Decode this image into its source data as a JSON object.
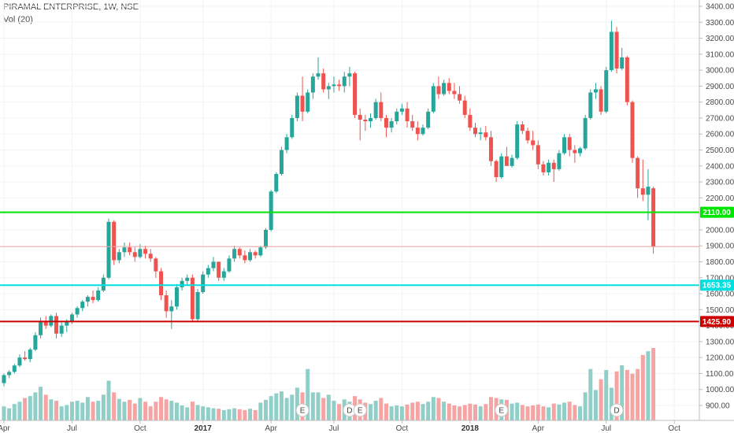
{
  "header": {
    "title": "PIRAMAL ENTERPRISE, 1W, NSE",
    "volume_label": "Vol (20)"
  },
  "chart_data": {
    "type": "candlestick",
    "title": "PIRAMAL ENTERPRISE, 1W, NSE",
    "y_axis": {
      "range": [
        850,
        3450
      ],
      "ticks": [
        900,
        1000,
        1100,
        1200,
        1300,
        1400,
        1500,
        1600,
        1700,
        1800,
        1900,
        2000,
        2100,
        2200,
        2300,
        2400,
        2500,
        2600,
        2700,
        2800,
        2900,
        3000,
        3100,
        3200,
        3300,
        3400
      ],
      "tick_labels": [
        "900.00",
        "1000.00",
        "1100.00",
        "1200.00",
        "1300.00",
        "1400.00",
        "1500.00",
        "1600.00",
        "1700.00",
        "1800.00",
        "1900.00",
        "2000.00",
        "2100.00",
        "2200.00",
        "2300.00",
        "2400.00",
        "2500.00",
        "2600.00",
        "2700.00",
        "2800.00",
        "2900.00",
        "3000.00",
        "3100.00",
        "3200.00",
        "3300.00",
        "3400.00"
      ]
    },
    "x_axis": {
      "labels": [
        {
          "text": "Apr",
          "index": 0,
          "year": false
        },
        {
          "text": "Jul",
          "index": 13,
          "year": false
        },
        {
          "text": "Oct",
          "index": 26,
          "year": false
        },
        {
          "text": "2017",
          "index": 38,
          "year": true
        },
        {
          "text": "Apr",
          "index": 51,
          "year": false
        },
        {
          "text": "Jul",
          "index": 63,
          "year": false
        },
        {
          "text": "Oct",
          "index": 76,
          "year": false
        },
        {
          "text": "2018",
          "index": 89,
          "year": true
        },
        {
          "text": "Apr",
          "index": 102,
          "year": false
        },
        {
          "text": "Jul",
          "index": 115,
          "year": false
        },
        {
          "text": "Oct",
          "index": 128,
          "year": false
        }
      ]
    },
    "horizontal_lines": [
      {
        "name": "green-level",
        "value": 2110,
        "color": "#00e600",
        "label": "2110.00"
      },
      {
        "name": "cyan-level",
        "value": 1653.35,
        "color": "#00e0e0",
        "label": "1653.35"
      },
      {
        "name": "red-level",
        "value": 1425.9,
        "color": "#cc0000",
        "label": "1425.90"
      },
      {
        "name": "current-price",
        "value": 1895,
        "color": "#f4a6a6",
        "label": ""
      }
    ],
    "events": [
      {
        "letter": "E",
        "index": 57
      },
      {
        "letter": "D",
        "index": 66
      },
      {
        "letter": "E",
        "index": 68
      },
      {
        "letter": "E",
        "index": 95
      },
      {
        "letter": "D",
        "index": 117
      }
    ],
    "colors": {
      "up": "#26a69a",
      "down": "#ef5350",
      "up_volume": "#8fcfc8",
      "down_volume": "#f5a3a3"
    },
    "candles": [
      [
        1040,
        1100,
        1020,
        1090,
        30
      ],
      [
        1090,
        1120,
        1070,
        1110,
        26
      ],
      [
        1110,
        1160,
        1100,
        1150,
        35
      ],
      [
        1150,
        1220,
        1140,
        1200,
        40
      ],
      [
        1200,
        1240,
        1180,
        1190,
        48
      ],
      [
        1190,
        1260,
        1170,
        1250,
        52
      ],
      [
        1250,
        1360,
        1240,
        1340,
        60
      ],
      [
        1340,
        1450,
        1320,
        1430,
        72
      ],
      [
        1430,
        1460,
        1380,
        1400,
        55
      ],
      [
        1400,
        1470,
        1390,
        1460,
        45
      ],
      [
        1460,
        1480,
        1320,
        1350,
        42
      ],
      [
        1350,
        1420,
        1330,
        1400,
        30
      ],
      [
        1400,
        1440,
        1360,
        1430,
        33
      ],
      [
        1430,
        1480,
        1410,
        1470,
        40
      ],
      [
        1470,
        1520,
        1450,
        1510,
        42
      ],
      [
        1510,
        1560,
        1490,
        1550,
        38
      ],
      [
        1550,
        1590,
        1520,
        1580,
        50
      ],
      [
        1580,
        1620,
        1540,
        1560,
        40
      ],
      [
        1560,
        1640,
        1550,
        1620,
        42
      ],
      [
        1620,
        1720,
        1610,
        1700,
        55
      ],
      [
        1700,
        2070,
        1690,
        2050,
        85
      ],
      [
        2050,
        2060,
        1780,
        1810,
        60
      ],
      [
        1810,
        1880,
        1790,
        1860,
        46
      ],
      [
        1860,
        1920,
        1830,
        1890,
        40
      ],
      [
        1890,
        1920,
        1840,
        1860,
        44
      ],
      [
        1860,
        1890,
        1800,
        1830,
        36
      ],
      [
        1830,
        1910,
        1820,
        1880,
        48
      ],
      [
        1880,
        1900,
        1820,
        1850,
        40
      ],
      [
        1850,
        1880,
        1800,
        1820,
        30
      ],
      [
        1820,
        1830,
        1700,
        1740,
        40
      ],
      [
        1740,
        1760,
        1560,
        1590,
        50
      ],
      [
        1590,
        1620,
        1450,
        1490,
        45
      ],
      [
        1490,
        1560,
        1380,
        1520,
        42
      ],
      [
        1520,
        1660,
        1500,
        1640,
        38
      ],
      [
        1640,
        1700,
        1620,
        1680,
        32
      ],
      [
        1680,
        1720,
        1650,
        1700,
        28
      ],
      [
        1700,
        1720,
        1420,
        1440,
        40
      ],
      [
        1440,
        1630,
        1420,
        1610,
        33
      ],
      [
        1610,
        1740,
        1600,
        1720,
        30
      ],
      [
        1720,
        1780,
        1700,
        1760,
        28
      ],
      [
        1760,
        1830,
        1740,
        1800,
        26
      ],
      [
        1800,
        1800,
        1680,
        1700,
        25
      ],
      [
        1700,
        1760,
        1680,
        1740,
        22
      ],
      [
        1740,
        1840,
        1730,
        1820,
        24
      ],
      [
        1820,
        1900,
        1800,
        1880,
        26
      ],
      [
        1880,
        1890,
        1820,
        1840,
        24
      ],
      [
        1840,
        1870,
        1790,
        1810,
        22
      ],
      [
        1810,
        1880,
        1800,
        1860,
        25
      ],
      [
        1860,
        1870,
        1820,
        1840,
        22
      ],
      [
        1840,
        1900,
        1830,
        1890,
        38
      ],
      [
        1890,
        2010,
        1880,
        2000,
        44
      ],
      [
        2000,
        2250,
        1990,
        2240,
        52
      ],
      [
        2240,
        2360,
        2230,
        2350,
        58
      ],
      [
        2350,
        2520,
        2340,
        2500,
        62
      ],
      [
        2500,
        2600,
        2480,
        2580,
        48
      ],
      [
        2580,
        2720,
        2570,
        2700,
        55
      ],
      [
        2700,
        2860,
        2680,
        2840,
        70
      ],
      [
        2840,
        2960,
        2680,
        2740,
        60
      ],
      [
        2740,
        2880,
        2730,
        2860,
        110
      ],
      [
        2860,
        2980,
        2820,
        2960,
        60
      ],
      [
        2960,
        3080,
        2940,
        2980,
        60
      ],
      [
        2980,
        3010,
        2860,
        2880,
        48
      ],
      [
        2880,
        2920,
        2820,
        2900,
        55
      ],
      [
        2900,
        2960,
        2860,
        2910,
        42
      ],
      [
        2910,
        2940,
        2870,
        2900,
        35
      ],
      [
        2900,
        2990,
        2860,
        2960,
        45
      ],
      [
        2960,
        3020,
        2900,
        2980,
        40
      ],
      [
        2980,
        2990,
        2700,
        2720,
        52
      ],
      [
        2720,
        2760,
        2560,
        2690,
        45
      ],
      [
        2690,
        2720,
        2620,
        2680,
        38
      ],
      [
        2680,
        2730,
        2640,
        2700,
        35
      ],
      [
        2700,
        2820,
        2690,
        2800,
        42
      ],
      [
        2800,
        2860,
        2680,
        2700,
        48
      ],
      [
        2700,
        2720,
        2580,
        2640,
        36
      ],
      [
        2640,
        2700,
        2610,
        2680,
        30
      ],
      [
        2680,
        2760,
        2660,
        2740,
        32
      ],
      [
        2740,
        2790,
        2720,
        2760,
        30
      ],
      [
        2760,
        2800,
        2640,
        2680,
        34
      ],
      [
        2680,
        2720,
        2620,
        2640,
        38
      ],
      [
        2640,
        2680,
        2560,
        2600,
        40
      ],
      [
        2600,
        2660,
        2590,
        2640,
        35
      ],
      [
        2640,
        2760,
        2630,
        2740,
        40
      ],
      [
        2740,
        2920,
        2730,
        2900,
        50
      ],
      [
        2900,
        2960,
        2820,
        2850,
        48
      ],
      [
        2850,
        2940,
        2840,
        2920,
        40
      ],
      [
        2920,
        2950,
        2850,
        2870,
        36
      ],
      [
        2870,
        2920,
        2820,
        2850,
        32
      ],
      [
        2850,
        2900,
        2790,
        2810,
        30
      ],
      [
        2810,
        2840,
        2700,
        2720,
        33
      ],
      [
        2720,
        2760,
        2620,
        2640,
        36
      ],
      [
        2640,
        2670,
        2580,
        2600,
        34
      ],
      [
        2600,
        2640,
        2560,
        2610,
        30
      ],
      [
        2610,
        2650,
        2560,
        2580,
        35
      ],
      [
        2580,
        2620,
        2400,
        2430,
        50
      ],
      [
        2430,
        2440,
        2300,
        2330,
        48
      ],
      [
        2330,
        2480,
        2320,
        2460,
        45
      ],
      [
        2460,
        2520,
        2420,
        2400,
        44
      ],
      [
        2400,
        2470,
        2390,
        2450,
        36
      ],
      [
        2450,
        2680,
        2440,
        2660,
        38
      ],
      [
        2660,
        2680,
        2600,
        2620,
        33
      ],
      [
        2620,
        2640,
        2540,
        2560,
        30
      ],
      [
        2560,
        2620,
        2500,
        2530,
        32
      ],
      [
        2530,
        2560,
        2380,
        2410,
        34
      ],
      [
        2410,
        2430,
        2340,
        2360,
        30
      ],
      [
        2360,
        2440,
        2340,
        2420,
        28
      ],
      [
        2420,
        2440,
        2300,
        2380,
        36
      ],
      [
        2380,
        2500,
        2370,
        2480,
        34
      ],
      [
        2480,
        2600,
        2470,
        2580,
        38
      ],
      [
        2580,
        2600,
        2460,
        2500,
        40
      ],
      [
        2500,
        2530,
        2420,
        2480,
        33
      ],
      [
        2480,
        2520,
        2460,
        2510,
        30
      ],
      [
        2510,
        2720,
        2500,
        2700,
        60
      ],
      [
        2700,
        2880,
        2690,
        2860,
        110
      ],
      [
        2860,
        2920,
        2820,
        2880,
        65
      ],
      [
        2880,
        2900,
        2720,
        2740,
        88
      ],
      [
        2740,
        3020,
        2730,
        3000,
        108
      ],
      [
        3000,
        3310,
        2990,
        3240,
        70
      ],
      [
        3240,
        3270,
        2980,
        3010,
        105
      ],
      [
        3010,
        3140,
        3000,
        3080,
        118
      ],
      [
        3080,
        3090,
        2780,
        2800,
        108
      ],
      [
        2800,
        2810,
        2420,
        2450,
        100
      ],
      [
        2450,
        2460,
        2200,
        2260,
        110
      ],
      [
        2260,
        2440,
        2180,
        2220,
        140
      ],
      [
        2220,
        2380,
        2060,
        2270,
        148
      ],
      [
        2260,
        2270,
        1850,
        1895,
        155
      ]
    ]
  }
}
